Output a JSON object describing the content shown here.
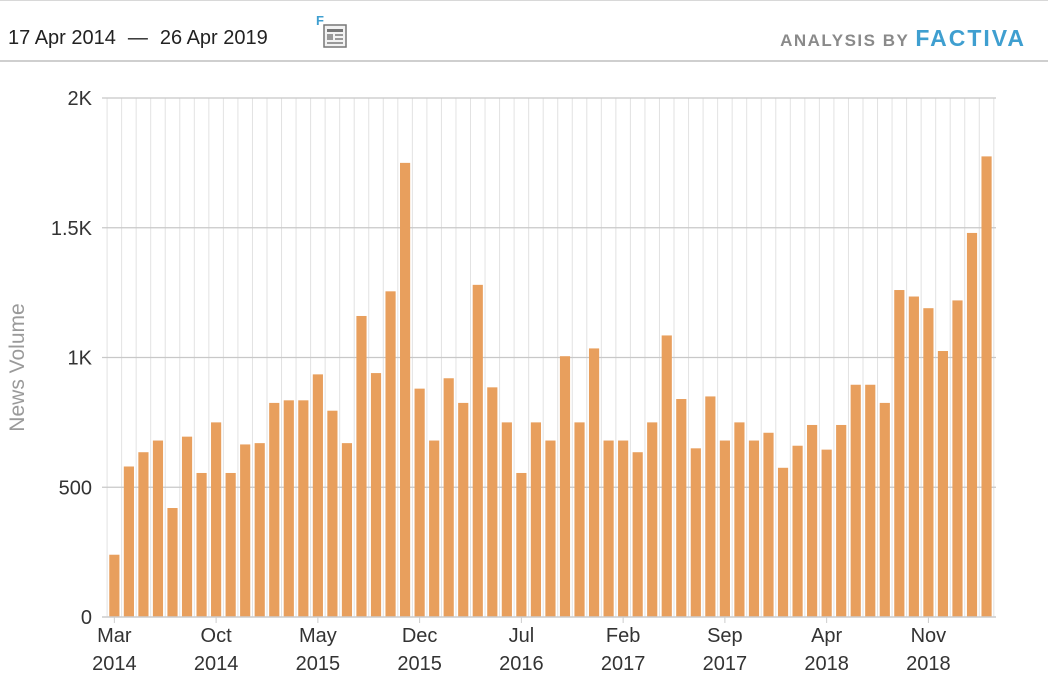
{
  "header": {
    "date_start": "17 Apr 2014",
    "date_separator": "—",
    "date_end": "26 Apr 2019",
    "icon": "factiva-article-icon",
    "brand_prefix": "ANALYSIS BY",
    "brand_name": "FACTIVA"
  },
  "colors": {
    "bar": "#e89f5d",
    "grid_major": "#c8c8c8",
    "grid_minor": "#e2e2e2",
    "axis": "#cccccc",
    "brand": "#3f9fd0"
  },
  "chart_data": {
    "type": "bar",
    "ylabel": "News Volume",
    "xlabel": "",
    "title": "",
    "ylim": [
      0,
      2000
    ],
    "yticks": [
      {
        "value": 0,
        "label": "0"
      },
      {
        "value": 500,
        "label": "500"
      },
      {
        "value": 1000,
        "label": "1K"
      },
      {
        "value": 1500,
        "label": "1.5K"
      },
      {
        "value": 2000,
        "label": "2K"
      }
    ],
    "xticks": [
      {
        "index": 0,
        "month": "Mar",
        "year": "2014"
      },
      {
        "index": 7,
        "month": "Oct",
        "year": "2014"
      },
      {
        "index": 14,
        "month": "May",
        "year": "2015"
      },
      {
        "index": 21,
        "month": "Dec",
        "year": "2015"
      },
      {
        "index": 28,
        "month": "Jul",
        "year": "2016"
      },
      {
        "index": 35,
        "month": "Feb",
        "year": "2017"
      },
      {
        "index": 42,
        "month": "Sep",
        "year": "2017"
      },
      {
        "index": 49,
        "month": "Apr",
        "year": "2018"
      },
      {
        "index": 56,
        "month": "Nov",
        "year": "2018"
      }
    ],
    "grid": true,
    "legend": "none",
    "values": [
      240,
      580,
      635,
      680,
      420,
      695,
      555,
      750,
      555,
      665,
      670,
      825,
      835,
      835,
      935,
      795,
      670,
      1160,
      940,
      1255,
      1750,
      880,
      680,
      920,
      825,
      1280,
      885,
      750,
      555,
      750,
      680,
      1005,
      750,
      1035,
      680,
      680,
      635,
      750,
      1085,
      840,
      650,
      850,
      680,
      750,
      680,
      710,
      575,
      660,
      740,
      645,
      740,
      895,
      895,
      825,
      1260,
      1235,
      1190,
      1025,
      1220,
      1480,
      1775
    ]
  }
}
